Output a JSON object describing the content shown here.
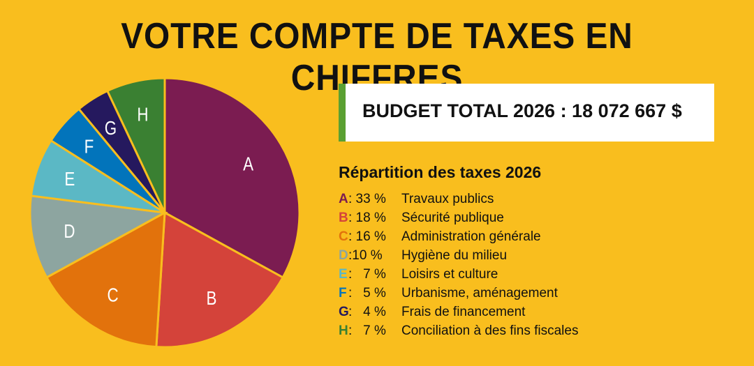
{
  "title": "VOTRE COMPTE DE TAXES EN CHIFFRES",
  "budget": "BUDGET TOTAL 2026 : 18 072 667  $",
  "chart_data": {
    "type": "pie",
    "title": "Répartition des taxes 2026",
    "start": "top-clockwise",
    "slices": [
      {
        "letter": "A",
        "value": 33,
        "pct_label": ": 33 %",
        "label": "Travaux publics",
        "color": "#7B1C51"
      },
      {
        "letter": "B",
        "value": 18,
        "pct_label": ": 18 %",
        "label": "Sécurité publique",
        "color": "#D4433A"
      },
      {
        "letter": "C",
        "value": 16,
        "pct_label": ": 16 %",
        "label": "Administration générale",
        "color": "#E2720C"
      },
      {
        "letter": "D",
        "value": 10,
        "pct_label": ":10 %",
        "label": "Hygiène du milieu",
        "color": "#8DA5A0"
      },
      {
        "letter": "E",
        "value": 7,
        "pct_label": ":   7 %",
        "label": "Loisirs et culture",
        "color": "#5BB8C5"
      },
      {
        "letter": "F",
        "value": 5,
        "pct_label": ":   5 %",
        "label": "Urbanisme, aménagement",
        "color": "#0274BB"
      },
      {
        "letter": "G",
        "value": 4,
        "pct_label": ":   4 %",
        "label": "Frais de financement",
        "color": "#25195E"
      },
      {
        "letter": "H",
        "value": 7,
        "pct_label": ":   7 %",
        "label": "Conciliation à des fins fiscales",
        "color": "#3A8032"
      }
    ]
  }
}
